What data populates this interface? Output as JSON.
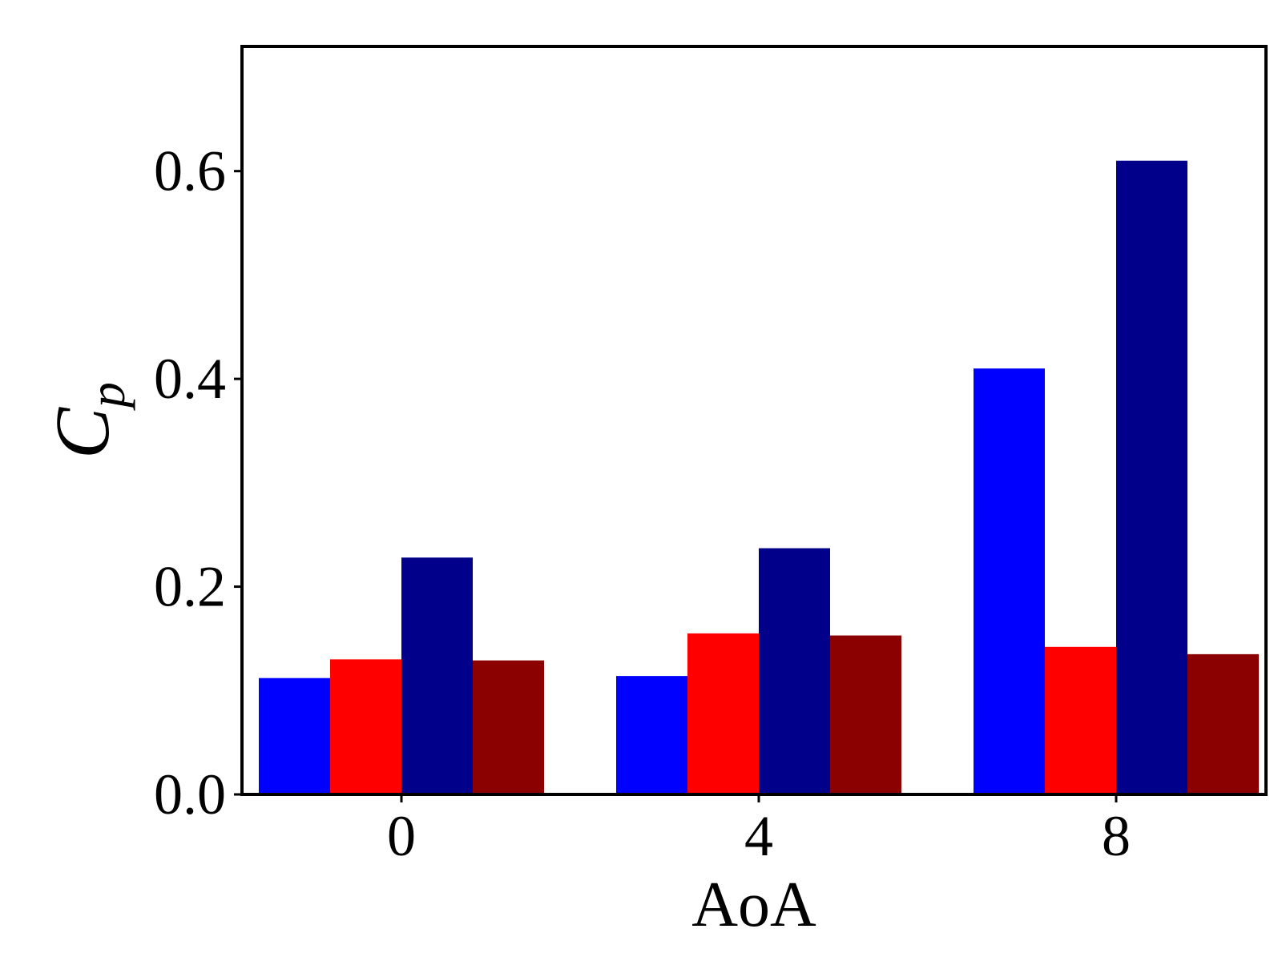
{
  "chart_data": {
    "type": "bar",
    "categories": [
      "0",
      "4",
      "8"
    ],
    "series": [
      {
        "values": [
          0.112,
          0.114,
          0.41
        ],
        "color": "#0000ff"
      },
      {
        "values": [
          0.13,
          0.155,
          0.142
        ],
        "color": "#ff0000"
      },
      {
        "values": [
          0.228,
          0.237,
          0.61
        ],
        "color": "#00008b"
      },
      {
        "values": [
          0.129,
          0.153,
          0.135
        ],
        "color": "#8b0000"
      }
    ],
    "xlabel": "AoA",
    "ylabel": {
      "base": "C",
      "sub": "p"
    },
    "ylim": [
      0,
      0.72
    ],
    "yticks": [
      0.0,
      0.2,
      0.4,
      0.6
    ],
    "ytick_labels": [
      "0.0",
      "0.2",
      "0.4",
      "0.6"
    ],
    "grid": false,
    "legend": "none"
  }
}
